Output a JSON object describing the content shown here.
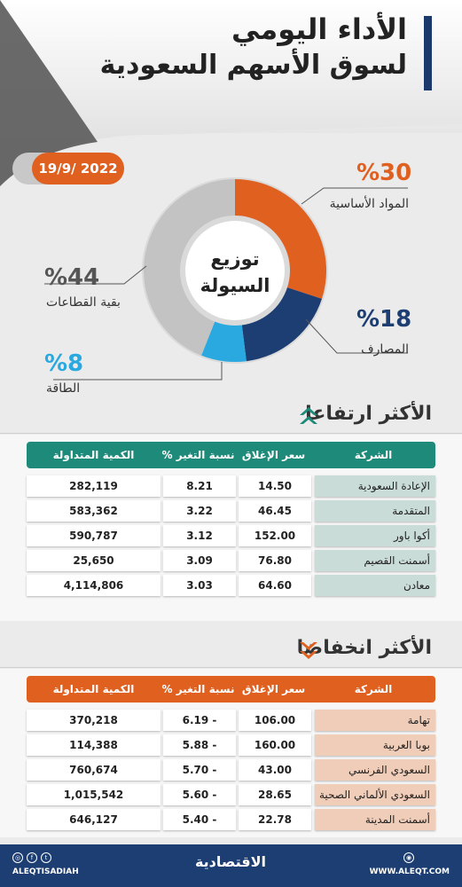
{
  "header": {
    "title_line1": "الأداء اليومي",
    "title_line2": "لسوق الأسهم السعودية"
  },
  "date": "19/9/ 2022",
  "chart_data": {
    "type": "pie",
    "title": "توزيع السيولة",
    "center_line1": "توزيع",
    "center_line2": "السيولة",
    "slices": [
      {
        "label": "المواد الأساسية",
        "percent_text": "%30",
        "value": 30,
        "color": "#e06020"
      },
      {
        "label": "المصارف",
        "percent_text": "%18",
        "value": 18,
        "color": "#1d3e72"
      },
      {
        "label": "الطاقة",
        "percent_text": "%8",
        "value": 8,
        "color": "#29a9e0"
      },
      {
        "label": "بقية القطاعات",
        "percent_text": "%44",
        "value": 44,
        "color": "#c3c3c3"
      }
    ]
  },
  "table_headers": {
    "company": "الشركة",
    "close": "سعر الإغلاق",
    "change": "نسبة التغير %",
    "volume": "الكمية المتداولة"
  },
  "gainers": {
    "title": "الأكثر ارتفاعا",
    "accent": "#1e8a7a",
    "rows": [
      {
        "company": "الإعادة السعودية",
        "close": "14.50",
        "change": "8.21",
        "volume": "282,119"
      },
      {
        "company": "المتقدمة",
        "close": "46.45",
        "change": "3.22",
        "volume": "583,362"
      },
      {
        "company": "أكوا باور",
        "close": "152.00",
        "change": "3.12",
        "volume": "590,787"
      },
      {
        "company": "أسمنت القصيم",
        "close": "76.80",
        "change": "3.09",
        "volume": "25,650"
      },
      {
        "company": "معادن",
        "close": "64.60",
        "change": "3.03",
        "volume": "4,114,806"
      }
    ]
  },
  "losers": {
    "title": "الأكثر انخفاضا",
    "accent": "#e06020",
    "rows": [
      {
        "company": "تهامة",
        "close": "106.00",
        "change": "6.19 -",
        "volume": "370,218"
      },
      {
        "company": "بوبا العربية",
        "close": "160.00",
        "change": "5.88 -",
        "volume": "114,388"
      },
      {
        "company": "السعودي الفرنسي",
        "close": "43.00",
        "change": "5.70 -",
        "volume": "760,674"
      },
      {
        "company": "السعودي الألماني الصحية",
        "close": "28.65",
        "change": "5.60 -",
        "volume": "1,015,542"
      },
      {
        "company": "أسمنت المدينة",
        "close": "22.78",
        "change": "5.40 -",
        "volume": "646,127"
      }
    ]
  },
  "footer": {
    "url": "WWW.ALEQT.COM",
    "handle": "ALEQTISADIAH",
    "logo": "الاقتصادية",
    "social_icons": [
      "instagram-icon",
      "facebook-icon",
      "twitter-icon"
    ],
    "web_icon": "globe-icon"
  }
}
